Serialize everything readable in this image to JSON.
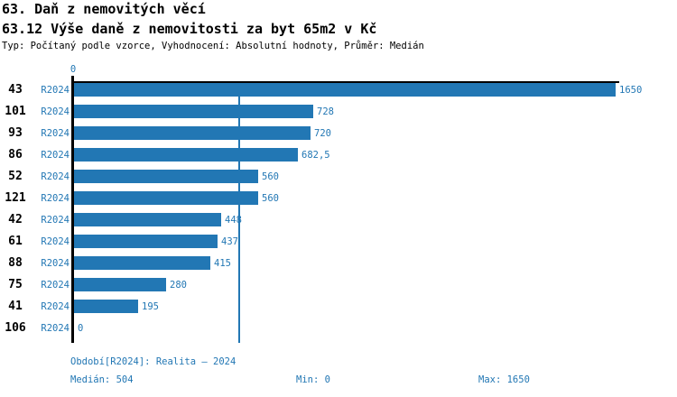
{
  "accent_color": "#2277B4",
  "header": {
    "title": "63. Daň z nemovitých věcí",
    "subtitle": "63.12 Výše daně z nemovitosti za byt 65m2 v Kč",
    "meta": "Typ: Počítaný podle vzorce, Vyhodnocení: Absolutní hodnoty, Průměr: Medián"
  },
  "chart_data": {
    "type": "bar",
    "orientation": "horizontal",
    "title": "63.12 Výše daně z nemovitosti za byt 65m2 v Kč",
    "categories": [
      "43",
      "101",
      "93",
      "86",
      "52",
      "121",
      "42",
      "61",
      "88",
      "75",
      "41",
      "106"
    ],
    "series": [
      {
        "name": "R2024",
        "values": [
          1650,
          728,
          720,
          682.5,
          560,
          560,
          448,
          437,
          415,
          280,
          195,
          0
        ],
        "value_labels": [
          "1650",
          "728",
          "720",
          "682,5",
          "560",
          "560",
          "448",
          "437",
          "415",
          "280",
          "195",
          "0"
        ]
      }
    ],
    "xlim": [
      0,
      1650
    ],
    "axis_origin_label": "0",
    "median_value": 504,
    "grid": false,
    "legend_position": "none",
    "bar_color": "#2277B4"
  },
  "footer": {
    "period": "Období[R2024]: Realita – 2024",
    "median": "Medián: 504",
    "min": "Min: 0",
    "max": "Max: 1650"
  }
}
